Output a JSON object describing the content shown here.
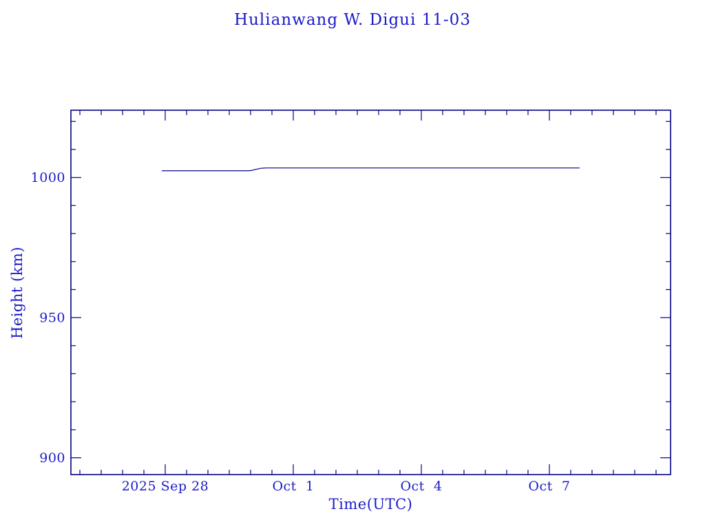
{
  "chart_data": {
    "type": "line",
    "title": "Hulianwang W. Digui 11-03",
    "xlabel": "Time(UTC)",
    "ylabel": "Height (km)",
    "x_unit": "days since 2025-09-28 00:00 UTC",
    "xlim": [
      -2.21,
      11.84
    ],
    "ylim": [
      894,
      1024
    ],
    "x_major_ticks": [
      {
        "value": 0,
        "label": "2025 Sep 28"
      },
      {
        "value": 3,
        "label": "Oct  1"
      },
      {
        "value": 6,
        "label": "Oct  4"
      },
      {
        "value": 9,
        "label": "Oct  7"
      }
    ],
    "x_minor_step": 0.5,
    "y_major_ticks": [
      {
        "value": 900,
        "label": "900"
      },
      {
        "value": 950,
        "label": "950"
      },
      {
        "value": 1000,
        "label": "1000"
      }
    ],
    "y_minor_step": 10,
    "grid": false,
    "legend": "none",
    "series": [
      {
        "name": "height",
        "points": [
          [
            -0.08,
            1002.4
          ],
          [
            1.94,
            1002.4
          ],
          [
            2.02,
            1002.5
          ],
          [
            2.12,
            1002.9
          ],
          [
            2.25,
            1003.3
          ],
          [
            2.37,
            1003.4
          ],
          [
            9.71,
            1003.4
          ]
        ]
      }
    ]
  },
  "colors": {
    "text": "#1a1ac8",
    "frame": "#000082",
    "line": "#000082"
  }
}
